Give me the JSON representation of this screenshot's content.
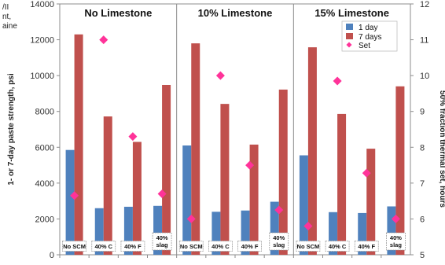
{
  "corner_fragments": [
    "/II",
    "nt,",
    "aine"
  ],
  "chart_data": {
    "type": "bar",
    "ylabel": "1- or 7-day paste strength, psi",
    "y2label": "50% fraction thermal set, hours",
    "ylim": [
      0,
      14000
    ],
    "yticks": [
      0,
      2000,
      4000,
      6000,
      8000,
      10000,
      12000,
      14000
    ],
    "y2lim": [
      5,
      12
    ],
    "y2ticks": [
      5,
      6,
      7,
      8,
      9,
      10,
      11,
      12
    ],
    "grid": false,
    "legend": "top-right",
    "legend_entries": [
      "1 day",
      "7 days",
      "Set"
    ],
    "colors": {
      "one_day": "#4f81bd",
      "seven_days": "#c0504d",
      "set": "#ff3399"
    },
    "panels": [
      {
        "title": "No Limestone",
        "categories": [
          "No SCM",
          "40% C",
          "40% F",
          "40% slag"
        ],
        "one_day": [
          5850,
          2600,
          2680,
          2730
        ],
        "seven_days": [
          12300,
          7720,
          6300,
          9480
        ],
        "set_hours": [
          6.65,
          11.0,
          8.3,
          6.7
        ]
      },
      {
        "title": "10% Limestone",
        "categories": [
          "No SCM",
          "40% C",
          "40% F",
          "40% slag"
        ],
        "one_day": [
          6100,
          2400,
          2470,
          2960
        ],
        "seven_days": [
          11800,
          8420,
          6150,
          9220
        ],
        "set_hours": [
          6.0,
          10.0,
          7.5,
          6.25
        ]
      },
      {
        "title": "15% Limestone",
        "categories": [
          "No SCM",
          "40% C",
          "40% F",
          "40% slag"
        ],
        "one_day": [
          5550,
          2380,
          2330,
          2700
        ],
        "seven_days": [
          11580,
          7860,
          5920,
          9400
        ],
        "set_hours": [
          5.8,
          9.85,
          7.28,
          6.0
        ]
      }
    ]
  }
}
